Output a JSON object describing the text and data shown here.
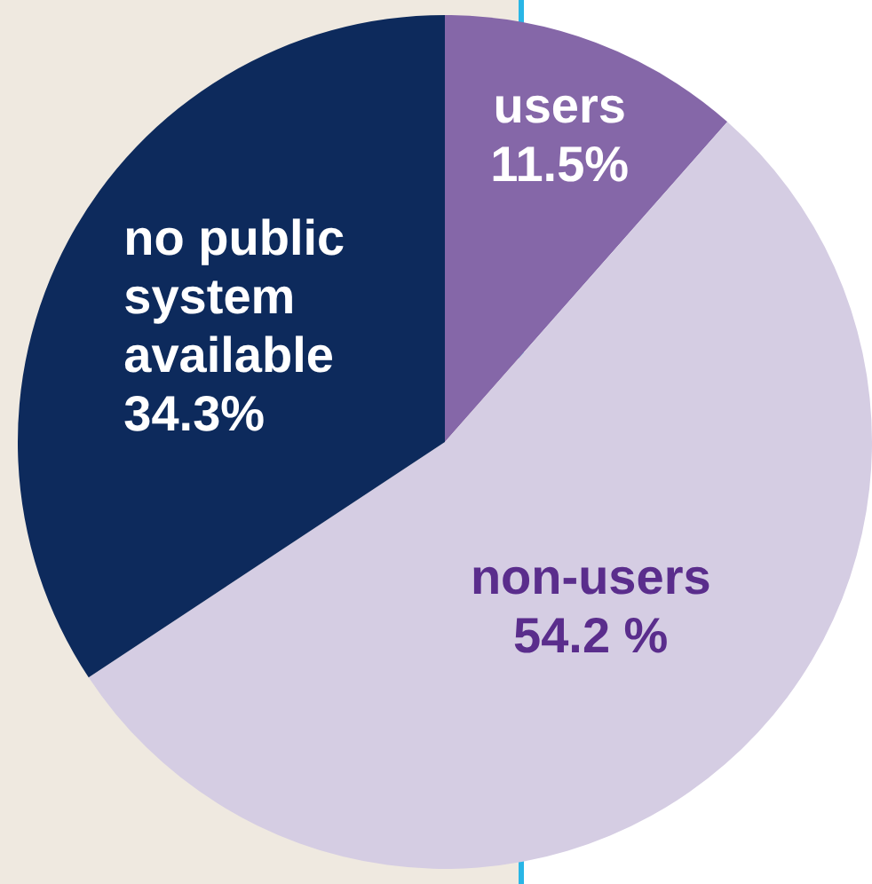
{
  "chart_data": {
    "type": "pie",
    "categories": [
      "users",
      "non-users",
      "no public system available"
    ],
    "values": [
      11.5,
      54.2,
      34.3
    ],
    "colors": [
      "#8567a8",
      "#d5cde3",
      "#0d2a5c"
    ],
    "value_labels": [
      "11.5%",
      "54.2 %",
      "34.3%"
    ],
    "legend": false
  }
}
